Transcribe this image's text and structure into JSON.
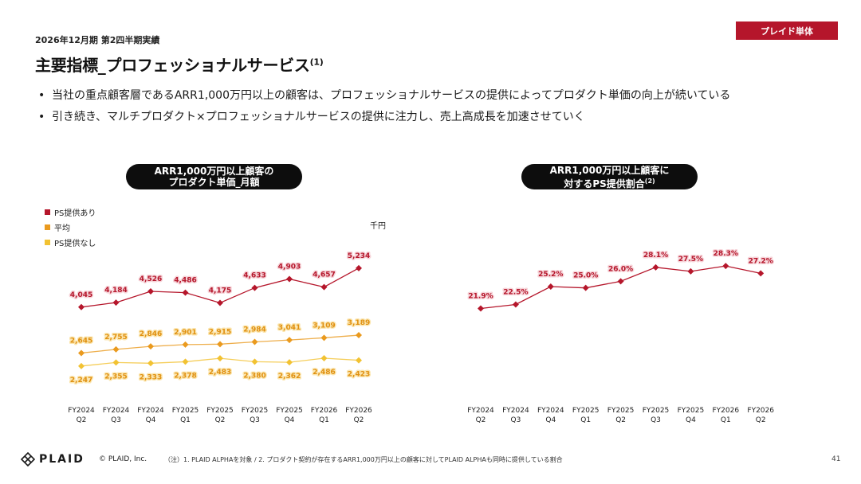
{
  "header": {
    "period": "2026年12月期 第2四半期実績",
    "title": "主要指標_プロフェッショナルサービス",
    "title_note": "(1)",
    "badge": "プレイド単体"
  },
  "bullets": [
    "当社の重点顧客層であるARR1,000万円以上の顧客は、プロフェッショナルサービスの提供によってプロダクト単価の向上が続いている",
    "引き続き、マルチプロダクト×プロフェッショナルサービスの提供に注力し、売上高成長を加速させていく"
  ],
  "left_panel": {
    "title_line1": "ARR1,000万円以上顧客の",
    "title_line2": "プロダクト単価_月額",
    "unit": "千円"
  },
  "right_panel": {
    "title_line1": "ARR1,000万円以上顧客に",
    "title_line2": "対するPS提供割合",
    "title_note": "(2)"
  },
  "chart_data": [
    {
      "type": "line",
      "categories": [
        "FY2024 Q2",
        "FY2024 Q3",
        "FY2024 Q4",
        "FY2025 Q1",
        "FY2025 Q2",
        "FY2025 Q3",
        "FY2025 Q4",
        "FY2026 Q1",
        "FY2026 Q2"
      ],
      "series": [
        {
          "name": "PS提供あり",
          "color": "#b5162b",
          "values": [
            4045,
            4184,
            4526,
            4486,
            4175,
            4633,
            4903,
            4657,
            5234
          ]
        },
        {
          "name": "平均",
          "color": "#ea9a1e",
          "values": [
            2645,
            2755,
            2846,
            2901,
            2915,
            2984,
            3041,
            3109,
            3189
          ]
        },
        {
          "name": "PS提供なし",
          "color": "#f2c232",
          "values": [
            2247,
            2355,
            2333,
            2378,
            2483,
            2380,
            2362,
            2486,
            2423
          ]
        }
      ],
      "legend_position": "top-left",
      "grid": false
    },
    {
      "type": "line",
      "categories": [
        "FY2024 Q2",
        "FY2024 Q3",
        "FY2024 Q4",
        "FY2025 Q1",
        "FY2025 Q2",
        "FY2025 Q3",
        "FY2025 Q4",
        "FY2026 Q1",
        "FY2026 Q2"
      ],
      "series": [
        {
          "color": "#b5162b",
          "values": [
            21.9,
            22.5,
            25.2,
            25.0,
            26.0,
            28.1,
            27.5,
            28.3,
            27.2
          ],
          "unit": "%"
        }
      ],
      "grid": false
    }
  ],
  "footer": {
    "logo": "PLAID",
    "copyright": "© PLAID, Inc.",
    "note": "（注）1. PLAID ALPHAを対象 / 2. プロダクト契約が存在するARR1,000万円以上の顧客に対してPLAID ALPHAも同時に提供している割合",
    "page": "41"
  }
}
